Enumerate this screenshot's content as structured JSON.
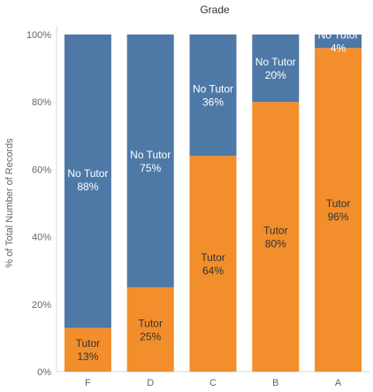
{
  "chart_data": {
    "type": "bar",
    "stacked": true,
    "title": "Grade",
    "xlabel": "",
    "ylabel": "% of Total Number of Records",
    "categories": [
      "F",
      "D",
      "C",
      "B",
      "A"
    ],
    "ylim": [
      0,
      100
    ],
    "yticks": [
      "0%",
      "20%",
      "40%",
      "60%",
      "80%",
      "100%"
    ],
    "grid": false,
    "series": [
      {
        "name": "Tutor",
        "color": "#f28e2b",
        "values": [
          13,
          25,
          64,
          80,
          96
        ],
        "labels": [
          "13%",
          "25%",
          "64%",
          "80%",
          "96%"
        ]
      },
      {
        "name": "No Tutor",
        "color": "#4e79a7",
        "values": [
          88,
          75,
          36,
          20,
          4
        ],
        "labels": [
          "88%",
          "75%",
          "36%",
          "20%",
          "4%"
        ]
      }
    ]
  },
  "colors": {
    "tutor": "#f28e2b",
    "no_tutor": "#4e79a7",
    "axis": "#d9d9d9"
  }
}
